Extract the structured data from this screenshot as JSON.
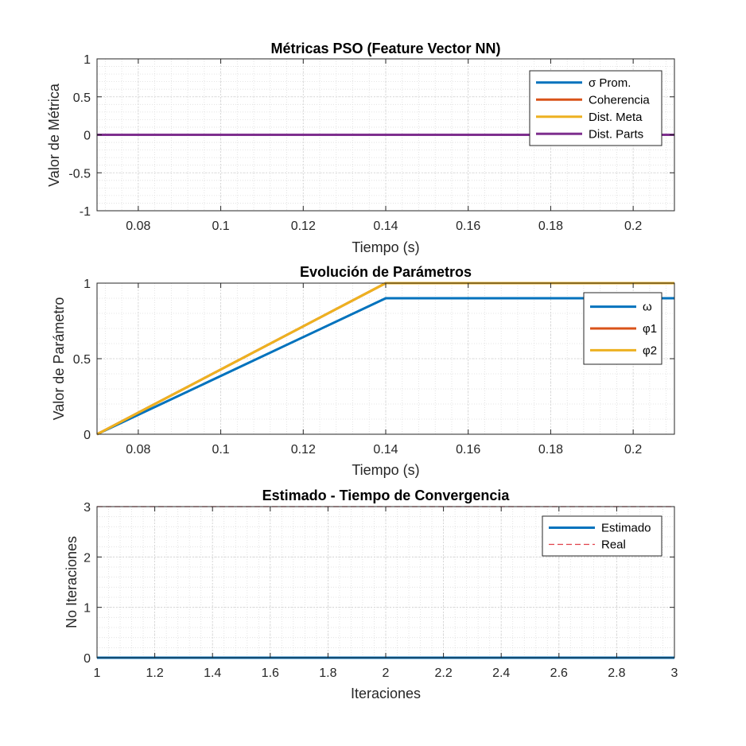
{
  "chart_data": [
    {
      "type": "line",
      "title": "Métricas PSO (Feature Vector NN)",
      "xlabel": "Tiempo (s)",
      "ylabel": "Valor de Métrica",
      "xlim": [
        0.07,
        0.21
      ],
      "ylim": [
        -1,
        1
      ],
      "xticks": [
        "0.08",
        "0.1",
        "0.12",
        "0.14",
        "0.16",
        "0.18",
        "0.2"
      ],
      "xtick_values": [
        0.08,
        0.1,
        0.12,
        0.14,
        0.16,
        0.18,
        0.2
      ],
      "yticks": [
        "1",
        "0.5",
        "0",
        "-0.5",
        "-1"
      ],
      "ytick_values": [
        1,
        0.5,
        0,
        -0.5,
        -1
      ],
      "grid": "minor",
      "legend_position": "top-right",
      "series": [
        {
          "name": "σ Prom.",
          "color": "#0072BD",
          "x": [
            0.07,
            0.21
          ],
          "values": [
            0,
            0
          ]
        },
        {
          "name": "Coherencia",
          "color": "#D95319",
          "x": [
            0.07,
            0.21
          ],
          "values": [
            0,
            0
          ]
        },
        {
          "name": "Dist. Meta",
          "color": "#EDB120",
          "x": [
            0.07,
            0.21
          ],
          "values": [
            0,
            0
          ]
        },
        {
          "name": "Dist. Parts",
          "color": "#7E2F8E",
          "x": [
            0.07,
            0.21
          ],
          "values": [
            0,
            0
          ]
        }
      ]
    },
    {
      "type": "line",
      "title": "Evolución de Parámetros",
      "xlabel": "Tiempo (s)",
      "ylabel": "Valor de Parámetro",
      "xlim": [
        0.07,
        0.21
      ],
      "ylim": [
        0,
        1
      ],
      "xticks": [
        "0.08",
        "0.1",
        "0.12",
        "0.14",
        "0.16",
        "0.18",
        "0.2"
      ],
      "xtick_values": [
        0.08,
        0.1,
        0.12,
        0.14,
        0.16,
        0.18,
        0.2
      ],
      "yticks": [
        "1",
        "0.5",
        "0"
      ],
      "ytick_values": [
        1,
        0.5,
        0
      ],
      "grid": "minor",
      "legend_position": "top-right",
      "series": [
        {
          "name": "ω",
          "color": "#0072BD",
          "x": [
            0.07,
            0.14,
            0.21
          ],
          "values": [
            0,
            0.9,
            0.9
          ]
        },
        {
          "name": "φ1",
          "color": "#D95319",
          "x": [
            0.07,
            0.14,
            0.21
          ],
          "values": [
            0,
            1,
            1
          ]
        },
        {
          "name": "φ2",
          "color": "#EDB120",
          "x": [
            0.07,
            0.14,
            0.21
          ],
          "values": [
            0,
            1,
            1
          ]
        }
      ]
    },
    {
      "type": "line",
      "title": "Estimado - Tiempo de Convergencia",
      "xlabel": "Iteraciones",
      "ylabel": "No Iteraciones",
      "xlim": [
        1,
        3
      ],
      "ylim": [
        0,
        3
      ],
      "xticks": [
        "1",
        "1.2",
        "1.4",
        "1.6",
        "1.8",
        "2",
        "2.2",
        "2.4",
        "2.6",
        "2.8",
        "3"
      ],
      "xtick_values": [
        1,
        1.2,
        1.4,
        1.6,
        1.8,
        2,
        2.2,
        2.4,
        2.6,
        2.8,
        3
      ],
      "yticks": [
        "3",
        "2",
        "1",
        "0"
      ],
      "ytick_values": [
        3,
        2,
        1,
        0
      ],
      "grid": "minor",
      "legend_position": "top-right",
      "series": [
        {
          "name": "Estimado",
          "color": "#0072BD",
          "style": "solid",
          "x": [
            1,
            3
          ],
          "values": [
            0,
            0
          ]
        },
        {
          "name": "Real",
          "color": "#E0404A",
          "style": "dashed",
          "x": [
            1,
            3
          ],
          "values": [
            3,
            3
          ]
        }
      ]
    }
  ]
}
